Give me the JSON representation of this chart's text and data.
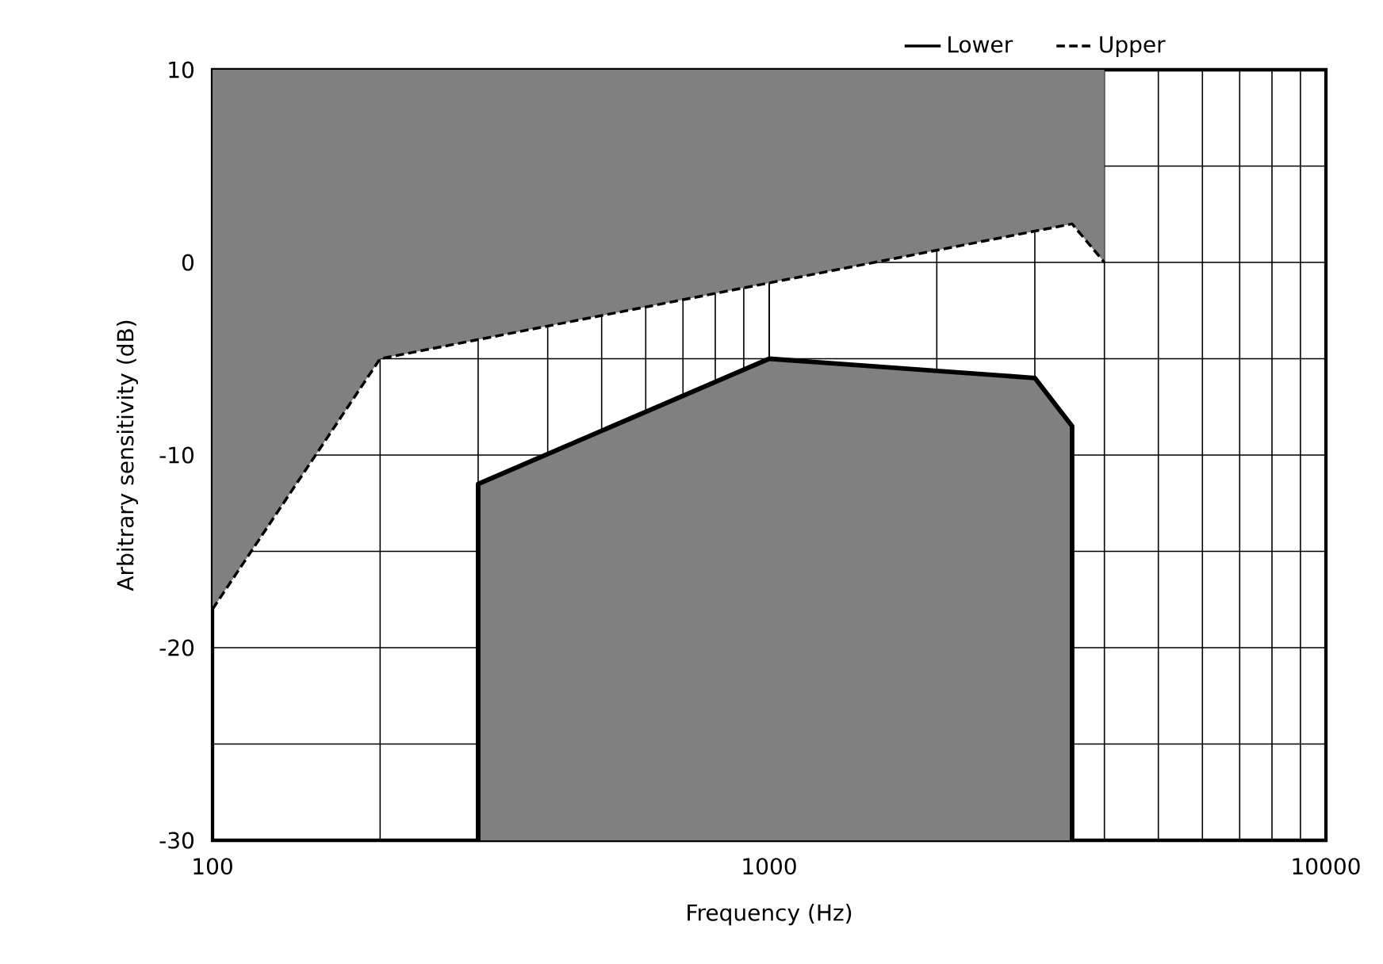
{
  "chart_data": {
    "type": "line",
    "xlabel": "Frequency (Hz)",
    "ylabel": "Arbitrary sensitivity (dB)",
    "log": "x",
    "xlim": [
      100,
      10000
    ],
    "xticks": [
      100,
      1000,
      10000
    ],
    "ylim": [
      -30,
      10
    ],
    "yticks": [
      -30,
      {
        "value": -25,
        "label": null
      },
      -20,
      {
        "value": -15,
        "label": null
      },
      -10,
      {
        "value": -5,
        "label": null
      },
      0,
      {
        "value": 5,
        "label": null
      },
      10
    ],
    "grid": true,
    "legend": "top",
    "marker": "none",
    "series": [
      {
        "name": "Lower",
        "color": "#000000",
        "line_style": "solid",
        "x": [
          300,
          300,
          1000,
          3000,
          3500,
          3500
        ],
        "values": [
          -30,
          -11.5,
          -5,
          -6,
          -8.5,
          -30
        ],
        "lower": [
          -30,
          -30,
          -30,
          -30,
          -30,
          -30
        ],
        "upper": [
          -30,
          -11.5,
          -5,
          -6,
          -8.5,
          -30
        ]
      },
      {
        "name": "Upper",
        "color": "#000000",
        "line_style": "dashed",
        "x": [
          100,
          200,
          3500,
          4000
        ],
        "values": [
          -18,
          -5,
          2,
          0
        ],
        "lower": [
          -18,
          -5,
          2,
          0
        ],
        "upper": [
          10,
          10,
          10,
          10
        ]
      }
    ]
  }
}
